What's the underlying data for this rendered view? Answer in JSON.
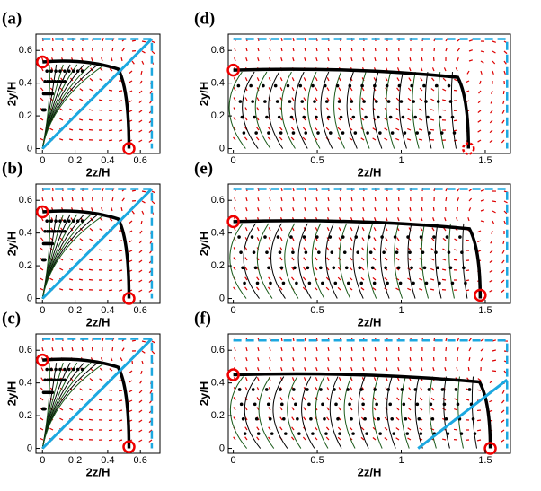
{
  "chart_data": [
    {
      "type": "streamline",
      "panel_label": "(a)",
      "x_label": "2z/H",
      "y_label": "2y/H",
      "xlim": [
        -0.04,
        0.72
      ],
      "ylim": [
        -0.03,
        0.7
      ],
      "xticks": [
        0,
        0.2,
        0.4,
        0.6
      ],
      "yticks": [
        0,
        0.2,
        0.4,
        0.6
      ],
      "boundary": {
        "x": 0.67,
        "y": 0.67
      },
      "symmetry_line": true,
      "critical_points": {
        "x": [
          0,
          0.53
        ],
        "y": [
          0.53,
          0
        ]
      }
    },
    {
      "type": "streamline",
      "panel_label": "(b)",
      "x_label": "2z/H",
      "y_label": "2y/H",
      "xlim": [
        -0.04,
        0.72
      ],
      "ylim": [
        -0.03,
        0.7
      ],
      "xticks": [
        0,
        0.2,
        0.4,
        0.6
      ],
      "yticks": [
        0,
        0.2,
        0.4,
        0.6
      ],
      "boundary": {
        "x": 0.67,
        "y": 0.67
      },
      "symmetry_line": true,
      "critical_points": {
        "x": [
          0,
          0.53
        ],
        "y": [
          0.53,
          0
        ]
      }
    },
    {
      "type": "streamline",
      "panel_label": "(c)",
      "x_label": "2z/H",
      "y_label": "2y/H",
      "xlim": [
        -0.04,
        0.72
      ],
      "ylim": [
        -0.03,
        0.7
      ],
      "xticks": [
        0,
        0.2,
        0.4,
        0.6
      ],
      "yticks": [
        0,
        0.2,
        0.4,
        0.6
      ],
      "boundary": {
        "x": 0.67,
        "y": 0.67
      },
      "symmetry_line": true,
      "critical_points": {
        "x": [
          0,
          0.53
        ],
        "y": [
          0.54,
          0.01
        ]
      }
    },
    {
      "type": "streamline",
      "panel_label": "(d)",
      "x_label": "2z/H",
      "y_label": "2y/H",
      "xlim": [
        -0.03,
        1.65
      ],
      "ylim": [
        -0.03,
        0.7
      ],
      "xticks": [
        0,
        0.5,
        1,
        1.5
      ],
      "yticks": [
        0,
        0.2,
        0.4,
        0.6
      ],
      "boundary": {
        "x": 1.63,
        "y": 0.67
      },
      "symmetry_line": false,
      "critical_points": {
        "x": [
          0,
          1.4
        ],
        "y": [
          0.48,
          0
        ]
      }
    },
    {
      "type": "streamline",
      "panel_label": "(e)",
      "x_label": "2z/H",
      "y_label": "2y/H",
      "xlim": [
        -0.03,
        1.65
      ],
      "ylim": [
        -0.03,
        0.7
      ],
      "xticks": [
        0,
        0.5,
        1,
        1.5
      ],
      "yticks": [
        0,
        0.2,
        0.4,
        0.6
      ],
      "boundary": {
        "x": 1.63,
        "y": 0.67
      },
      "symmetry_line": false,
      "critical_points": {
        "x": [
          0,
          1.47
        ],
        "y": [
          0.47,
          0.02
        ]
      }
    },
    {
      "type": "streamline",
      "panel_label": "(f)",
      "x_label": "2z/H",
      "y_label": "2y/H",
      "xlim": [
        -0.03,
        1.65
      ],
      "ylim": [
        -0.03,
        0.7
      ],
      "xticks": [
        0,
        0.5,
        1,
        1.5
      ],
      "yticks": [
        0,
        0.2,
        0.4,
        0.6
      ],
      "boundary": {
        "x": 1.63,
        "y": 0.66
      },
      "symmetry_line": true,
      "critical_points": {
        "x": [
          0,
          1.53
        ],
        "y": [
          0.45,
          0
        ]
      }
    }
  ]
}
